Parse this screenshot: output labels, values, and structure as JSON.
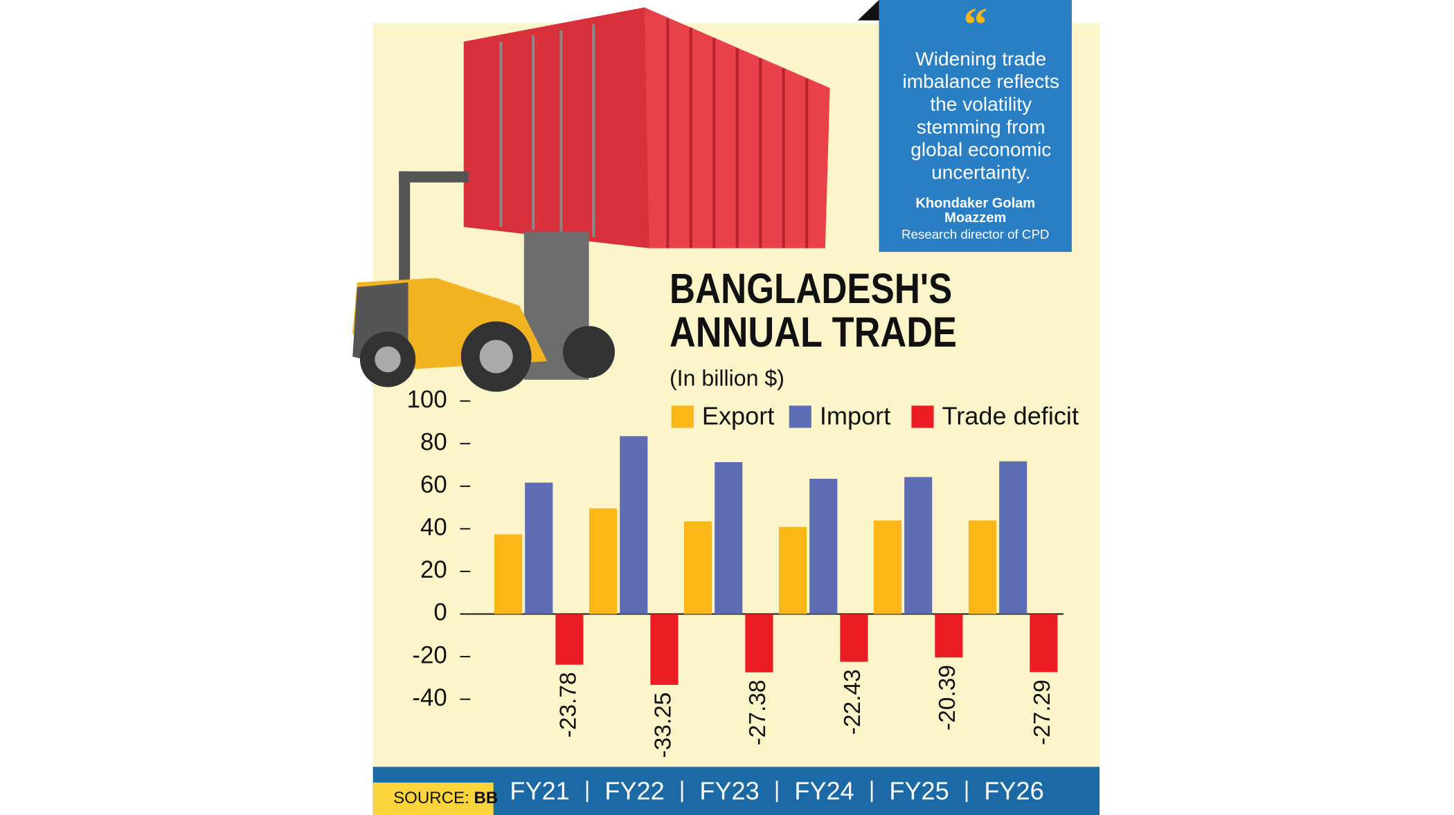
{
  "chart_data": {
    "type": "bar",
    "title": [
      "BANGLADESH'S",
      "ANNUAL TRADE"
    ],
    "subtitle": "(In billion $)",
    "categories": [
      "FY21",
      "FY22",
      "FY23",
      "FY24",
      "FY25",
      "FY26"
    ],
    "series": [
      {
        "name": "Export",
        "color": "#fbb718",
        "values": [
          37.4,
          49.6,
          43.5,
          40.9,
          43.9,
          43.9
        ]
      },
      {
        "name": "Import",
        "color": "#5e6db3",
        "values": [
          61.7,
          83.5,
          71.3,
          63.5,
          64.3,
          71.7
        ]
      },
      {
        "name": "Trade deficit",
        "color": "#ec1c24",
        "values": [
          -23.78,
          -33.25,
          -27.38,
          -22.43,
          -20.39,
          -27.29
        ]
      }
    ],
    "labeled_series": 2,
    "ylim": [
      -40,
      100
    ],
    "yticks": [
      100,
      80,
      60,
      40,
      20,
      0,
      -20,
      -40
    ],
    "source": {
      "label": "SOURCE:",
      "value": "BB"
    }
  },
  "quote": {
    "lines": [
      "Widening trade",
      "imbalance reflects",
      "the volatility",
      "stemming from",
      "global economic",
      "uncertainty."
    ],
    "author": [
      "Khondaker Golam",
      "Moazzem"
    ],
    "role": "Research director of CPD"
  }
}
